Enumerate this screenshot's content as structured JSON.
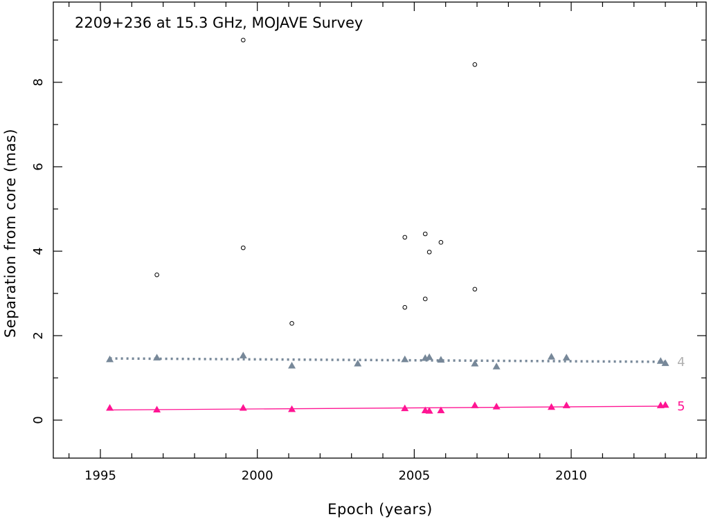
{
  "chart_data": {
    "type": "scatter",
    "title": "2209+236 at 15.3 GHz, MOJAVE Survey",
    "xlabel": "Epoch (years)",
    "ylabel": "Separation from core (mas)",
    "xlim": [
      1993.5,
      2014.3
    ],
    "ylim": [
      -0.9,
      9.9
    ],
    "x_ticks": [
      1995,
      2000,
      2005,
      2010
    ],
    "y_ticks": [
      0,
      2,
      4,
      6,
      8
    ],
    "grid": false,
    "colors": {
      "unassociated": "#000000",
      "component_4": "#778899",
      "component_5": "#ff1493"
    },
    "series": [
      {
        "name": "4",
        "marker": "triangle",
        "fit": "dotted",
        "fit_line": [
          [
            1995.3,
            1.46
          ],
          [
            2013.0,
            1.38
          ]
        ],
        "points": [
          [
            1995.3,
            1.44
          ],
          [
            1996.8,
            1.48
          ],
          [
            1999.55,
            1.53
          ],
          [
            2001.1,
            1.29
          ],
          [
            2003.2,
            1.34
          ],
          [
            2004.7,
            1.44
          ],
          [
            2005.35,
            1.47
          ],
          [
            2005.48,
            1.49
          ],
          [
            2005.85,
            1.43
          ],
          [
            2006.93,
            1.34
          ],
          [
            2007.62,
            1.27
          ],
          [
            2009.37,
            1.5
          ],
          [
            2009.85,
            1.48
          ],
          [
            2012.85,
            1.4
          ],
          [
            2013.0,
            1.35
          ]
        ]
      },
      {
        "name": "5",
        "marker": "triangle",
        "fit": "solid",
        "fit_line": [
          [
            1995.3,
            0.24
          ],
          [
            2013.0,
            0.33
          ]
        ],
        "points": [
          [
            1995.3,
            0.29
          ],
          [
            1996.8,
            0.25
          ],
          [
            1999.55,
            0.29
          ],
          [
            2001.1,
            0.26
          ],
          [
            2004.7,
            0.28
          ],
          [
            2005.35,
            0.23
          ],
          [
            2005.48,
            0.22
          ],
          [
            2005.85,
            0.23
          ],
          [
            2006.93,
            0.35
          ],
          [
            2007.62,
            0.32
          ],
          [
            2009.37,
            0.31
          ],
          [
            2009.85,
            0.35
          ],
          [
            2012.85,
            0.35
          ],
          [
            2013.0,
            0.36
          ]
        ]
      },
      {
        "marker": "circle",
        "fit": "none",
        "points": [
          [
            1996.8,
            3.44
          ],
          [
            1999.55,
            9.0
          ],
          [
            1999.55,
            4.08
          ],
          [
            2001.1,
            2.29
          ],
          [
            2004.7,
            4.33
          ],
          [
            2004.7,
            2.67
          ],
          [
            2005.35,
            4.41
          ],
          [
            2005.35,
            2.87
          ],
          [
            2005.48,
            3.98
          ],
          [
            2005.85,
            4.21
          ],
          [
            2006.93,
            8.42
          ],
          [
            2006.93,
            3.1
          ]
        ]
      }
    ]
  }
}
